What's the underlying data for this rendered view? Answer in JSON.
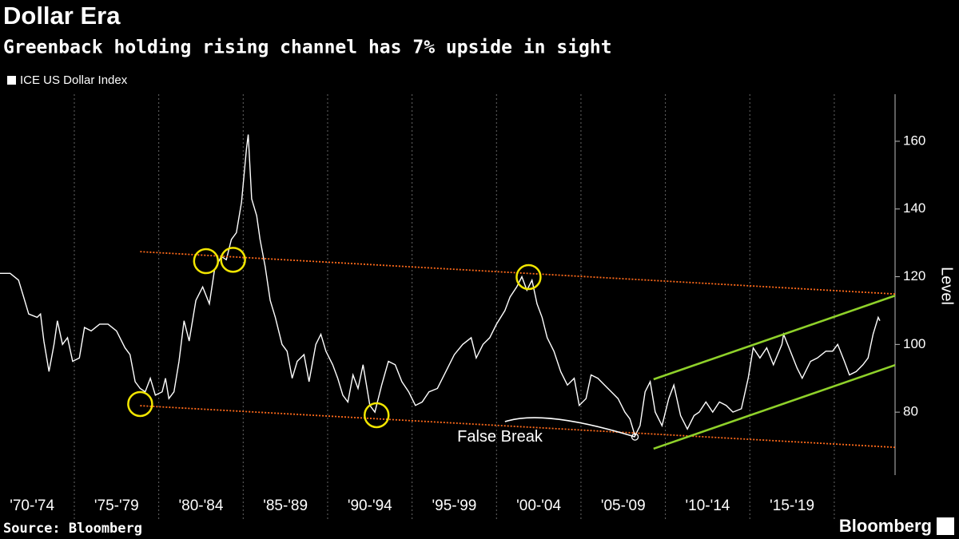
{
  "chart_data": {
    "type": "line",
    "title": "Dollar Era",
    "subtitle": "Greenback holding rising channel has 7% upside in sight",
    "y_label": "Level",
    "source": "Source: Bloomberg",
    "brand": "Bloomberg",
    "legend": "top-left",
    "y_axis_side": "right",
    "x": [
      1970.6,
      1971.2,
      1971.7,
      1972.0,
      1972.3,
      1972.8,
      1973.0,
      1973.2,
      1973.5,
      1973.8,
      1974.0,
      1974.3,
      1974.6,
      1974.9,
      1975.3,
      1975.6,
      1976.0,
      1976.5,
      1977.0,
      1977.5,
      1978.0,
      1978.3,
      1978.6,
      1978.9,
      1979.2,
      1979.5,
      1979.8,
      1980.2,
      1980.4,
      1980.6,
      1980.9,
      1981.2,
      1981.5,
      1981.8,
      1982.2,
      1982.6,
      1983.0,
      1983.3,
      1983.7,
      1984.0,
      1984.3,
      1984.6,
      1984.9,
      1985.2,
      1985.3,
      1985.5,
      1985.8,
      1986.0,
      1986.3,
      1986.6,
      1986.9,
      1987.3,
      1987.6,
      1987.9,
      1988.2,
      1988.6,
      1988.9,
      1989.3,
      1989.6,
      1989.9,
      1990.3,
      1990.6,
      1990.9,
      1991.2,
      1991.5,
      1991.8,
      1992.1,
      1992.5,
      1992.8,
      1993.2,
      1993.6,
      1994.0,
      1994.4,
      1994.8,
      1995.2,
      1995.6,
      1996.0,
      1996.5,
      1997.0,
      1997.5,
      1998.0,
      1998.5,
      1998.8,
      1999.2,
      1999.6,
      2000.0,
      2000.5,
      2000.8,
      2001.2,
      2001.5,
      2001.8,
      2002.1,
      2002.4,
      2002.7,
      2003.0,
      2003.4,
      2003.8,
      2004.2,
      2004.6,
      2004.9,
      2005.3,
      2005.6,
      2006.0,
      2006.4,
      2006.8,
      2007.2,
      2007.6,
      2007.9,
      2008.2,
      2008.5,
      2008.8,
      2009.1,
      2009.4,
      2009.8,
      2010.2,
      2010.5,
      2010.9,
      2011.3,
      2011.7,
      2012.0,
      2012.4,
      2012.8,
      2013.2,
      2013.6,
      2014.0,
      2014.5,
      2014.9,
      2015.2,
      2015.6,
      2016.0,
      2016.4,
      2016.9,
      2017.0,
      2017.4,
      2017.8,
      2018.1,
      2018.6,
      2019.0,
      2019.5,
      2019.9,
      2020.2,
      2020.6,
      2020.9,
      2021.3,
      2021.7,
      2022.0,
      2022.3,
      2022.6,
      2022.7
    ],
    "series": [
      {
        "name": "ICE US Dollar Index",
        "color": "#ffffff",
        "values": [
          121,
          121,
          119,
          114,
          109,
          108,
          109,
          101,
          92,
          100,
          107,
          100,
          102,
          95,
          96,
          105,
          104,
          106,
          106,
          104,
          99,
          97,
          89,
          87,
          86,
          90,
          85,
          86,
          90,
          84,
          86,
          95,
          107,
          101,
          113,
          117,
          112,
          122,
          126,
          125,
          131,
          133,
          142,
          158,
          162,
          143,
          138,
          131,
          123,
          113,
          108,
          100,
          98,
          90,
          95,
          97,
          89,
          100,
          103,
          98,
          94,
          90,
          85,
          83,
          91,
          87,
          94,
          82,
          80,
          88,
          95,
          94,
          89,
          86,
          82,
          83,
          86,
          87,
          92,
          97,
          100,
          102,
          96,
          100,
          102,
          106,
          110,
          114,
          117,
          120,
          116,
          119,
          112,
          108,
          102,
          98,
          92,
          88,
          90,
          82,
          84,
          91,
          90,
          88,
          86,
          84,
          80,
          78,
          73,
          76,
          86,
          89,
          80,
          76,
          84,
          88,
          79,
          75,
          79,
          80,
          83,
          80,
          83,
          82,
          80,
          81,
          90,
          99,
          96,
          99,
          94,
          100,
          103,
          98,
          93,
          90,
          95,
          96,
          98,
          98,
          100,
          95,
          91,
          92,
          94,
          96,
          103,
          108,
          107
        ]
      }
    ],
    "xlim": [
      1970.6,
      2023.6
    ],
    "ylim": [
      61.4,
      173.9
    ],
    "xticks": [
      {
        "value": 1972.5,
        "label": "'70-'74"
      },
      {
        "value": 1977.5,
        "label": "'75-'79"
      },
      {
        "value": 1982.5,
        "label": "'80-'84"
      },
      {
        "value": 1987.5,
        "label": "'85-'89"
      },
      {
        "value": 1992.5,
        "label": "'90-'94"
      },
      {
        "value": 1997.5,
        "label": "'95-'99"
      },
      {
        "value": 2002.5,
        "label": "'00-'04"
      },
      {
        "value": 2007.5,
        "label": "'05-'09"
      },
      {
        "value": 2012.5,
        "label": "'10-'14"
      },
      {
        "value": 2017.5,
        "label": "'15-'19"
      }
    ],
    "xgrid": [
      1975,
      1980,
      1985,
      1990,
      1995,
      2000,
      2005,
      2010,
      2015,
      2020
    ],
    "yticks": [
      80,
      100,
      120,
      140,
      160
    ],
    "trend_lines": [
      {
        "color": "#ff6a1a",
        "style": "dotted",
        "x": [
          1978.9,
          2023.6
        ],
        "y": [
          127.4,
          114.9
        ]
      },
      {
        "color": "#ff6a1a",
        "style": "dotted",
        "x": [
          1978.9,
          2023.6
        ],
        "y": [
          81.9,
          69.6
        ]
      },
      {
        "color": "#8fd12a",
        "style": "solid",
        "x": [
          2009.3,
          2023.6
        ],
        "y": [
          89.7,
          114.4
        ]
      },
      {
        "color": "#8fd12a",
        "style": "solid",
        "x": [
          2009.3,
          2023.6
        ],
        "y": [
          69.2,
          93.9
        ]
      }
    ],
    "highlight_circles": {
      "color": "#f2e600",
      "x": [
        1982.8,
        1984.4,
        1978.9,
        1992.9,
        2001.9
      ],
      "y": [
        124.6,
        125.0,
        82.4,
        79.1,
        119.9
      ]
    },
    "annotations": [
      {
        "text": "False Break",
        "x": 2000.2,
        "y": 72.5,
        "curve_x": [
          2000.5,
          2002.8,
          2008.2
        ],
        "curve_y": [
          77.2,
          78.6,
          72.7
        ]
      }
    ]
  }
}
